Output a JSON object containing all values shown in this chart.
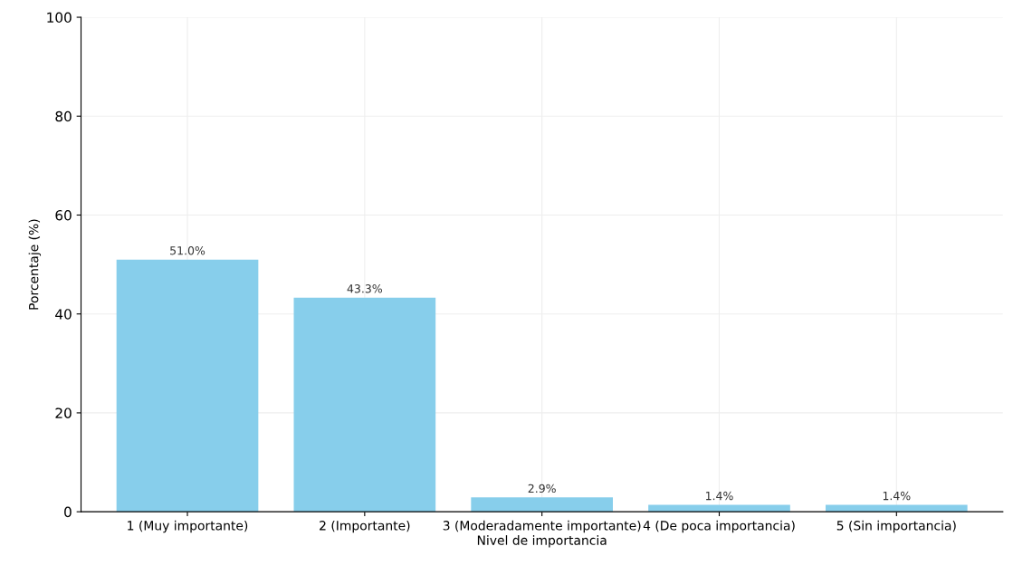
{
  "chart_data": {
    "type": "bar",
    "xlabel": "Nivel de importancia",
    "ylabel": "Porcentaje (%)",
    "categories": [
      "1 (Muy importante)",
      "2 (Importante)",
      "3 (Moderadamente importante)",
      "4 (De poca importancia)",
      "5 (Sin importancia)"
    ],
    "values": [
      51.0,
      43.3,
      2.9,
      1.4,
      1.4
    ],
    "value_labels": [
      "51.0%",
      "43.3%",
      "2.9%",
      "1.4%",
      "1.4%"
    ],
    "color": "#87ceeb",
    "ylim": [
      0,
      100
    ],
    "yticks": [
      0,
      20,
      40,
      60,
      80,
      100
    ],
    "grid": true
  }
}
